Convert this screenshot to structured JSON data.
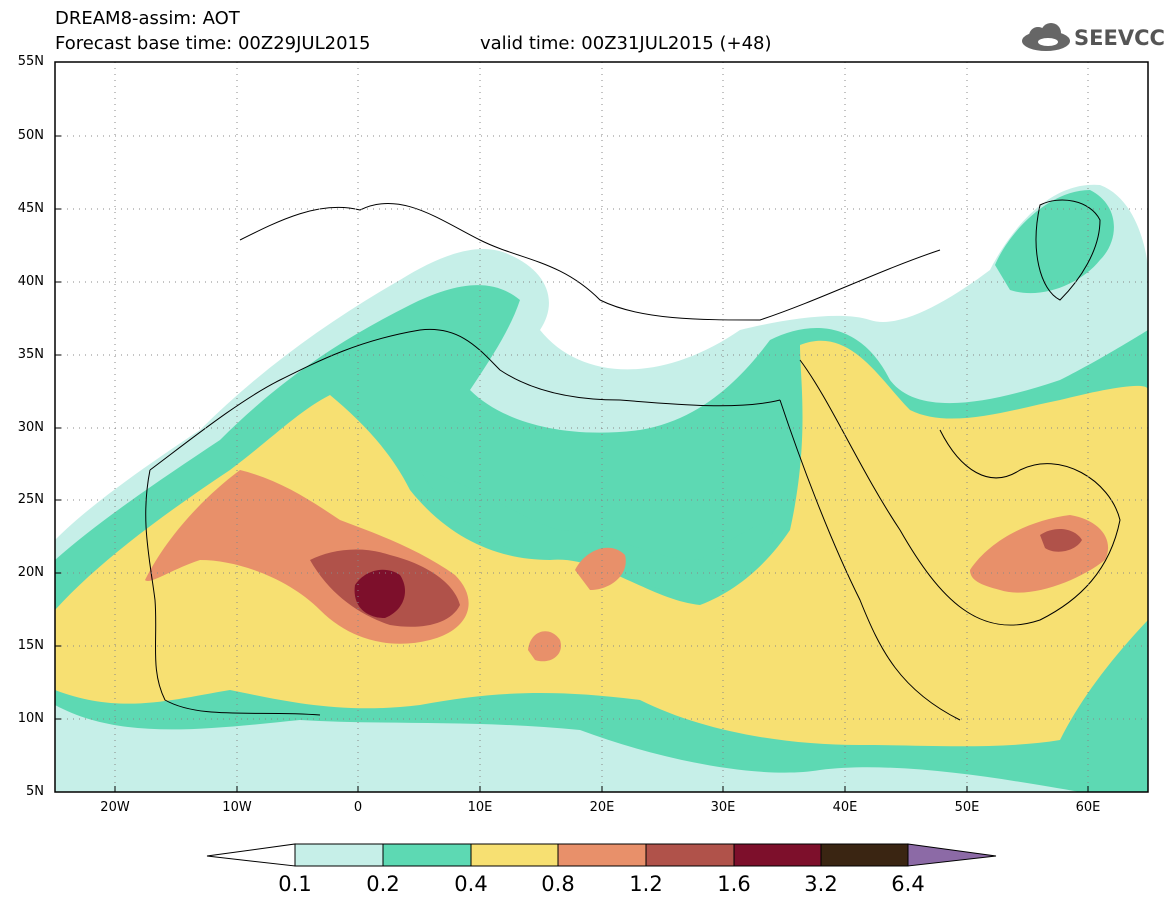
{
  "header": {
    "line1": "DREAM8-assim: AOT",
    "line2_left": "Forecast base time: 00Z29JUL2015",
    "line2_right": "valid time: 00Z31JUL2015 (+48)"
  },
  "logo": {
    "text": "SEEVCCC",
    "icon": "cloud-logo-icon"
  },
  "map": {
    "region": "North Africa, Middle East and Europe",
    "lon_range": [
      -25,
      65
    ],
    "lat_range": [
      5,
      55
    ],
    "grid": "dotted",
    "lat_labels": [
      "55N",
      "50N",
      "45N",
      "40N",
      "35N",
      "30N",
      "25N",
      "20N",
      "15N",
      "10N",
      "5N"
    ],
    "lon_labels": [
      "20W",
      "10W",
      "0",
      "10E",
      "20E",
      "30E",
      "40E",
      "50E",
      "60E"
    ]
  },
  "colorbar": {
    "labels": [
      "0.1",
      "0.2",
      "0.4",
      "0.8",
      "1.2",
      "1.6",
      "3.2",
      "6.4"
    ],
    "colors": [
      "#ffffff",
      "#c6efe8",
      "#5dd9b3",
      "#f7e072",
      "#e8906a",
      "#b0524a",
      "#7d0f2b",
      "#3a2512",
      "#8c6aa6"
    ]
  }
}
